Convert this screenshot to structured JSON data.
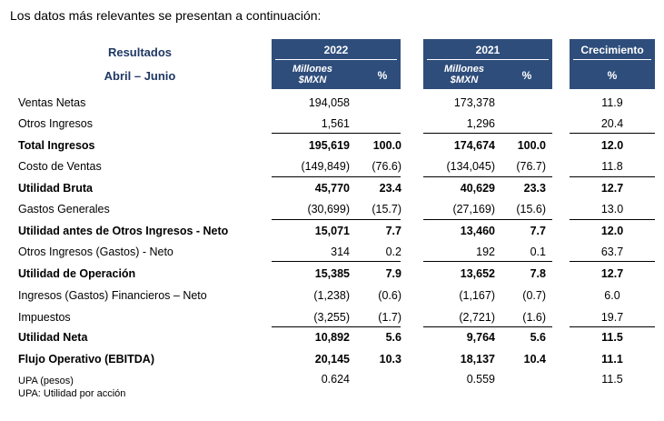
{
  "intro": "Los datos más relevantes se presentan a continuación:",
  "header": {
    "title1": "Resultados",
    "title2": "Abril – Junio",
    "year1": "2022",
    "year2": "2021",
    "growth": "Crecimiento",
    "millones": "Millones",
    "mxn": "$MXN",
    "pct": "%"
  },
  "rows": [
    {
      "label": "Ventas Netas",
      "v2022": "194,058",
      "p2022": "",
      "v2021": "173,378",
      "p2021": "",
      "growth": "11.9",
      "bold": false
    },
    {
      "label": "Otros Ingresos",
      "v2022": "1,561",
      "p2022": "",
      "v2021": "1,296",
      "p2021": "",
      "growth": "20.4",
      "bold": false
    },
    {
      "label": "Total Ingresos",
      "v2022": "195,619",
      "p2022": "100.0",
      "v2021": "174,674",
      "p2021": "100.0",
      "growth": "12.0",
      "bold": true
    },
    {
      "label": "Costo de Ventas",
      "v2022": "(149,849)",
      "p2022": "(76.6)",
      "v2021": "(134,045)",
      "p2021": "(76.7)",
      "growth": "11.8",
      "bold": false
    },
    {
      "label": "Utilidad Bruta",
      "v2022": "45,770",
      "p2022": "23.4",
      "v2021": "40,629",
      "p2021": "23.3",
      "growth": "12.7",
      "bold": true
    },
    {
      "label": "Gastos Generales",
      "v2022": "(30,699)",
      "p2022": "(15.7)",
      "v2021": "(27,169)",
      "p2021": "(15.6)",
      "growth": "13.0",
      "bold": false
    },
    {
      "label": "Utilidad antes de Otros Ingresos - Neto",
      "v2022": "15,071",
      "p2022": "7.7",
      "v2021": "13,460",
      "p2021": "7.7",
      "growth": "12.0",
      "bold": true
    },
    {
      "label": "Otros Ingresos (Gastos) - Neto",
      "v2022": "314",
      "p2022": "0.2",
      "v2021": "192",
      "p2021": "0.1",
      "growth": "63.7",
      "bold": false
    },
    {
      "label": "Utilidad de Operación",
      "v2022": "15,385",
      "p2022": "7.9",
      "v2021": "13,652",
      "p2021": "7.8",
      "growth": "12.7",
      "bold": true
    },
    {
      "label": "Ingresos (Gastos) Financieros – Neto",
      "v2022": "(1,238)",
      "p2022": "(0.6)",
      "v2021": "(1,167)",
      "p2021": "(0.7)",
      "growth": "6.0",
      "bold": false
    },
    {
      "label": "Impuestos",
      "v2022": "(3,255)",
      "p2022": "(1.7)",
      "v2021": "(2,721)",
      "p2021": "(1.6)",
      "growth": "19.7",
      "bold": false
    },
    {
      "label": "Utilidad Neta",
      "v2022": "10,892",
      "p2022": "5.6",
      "v2021": "9,764",
      "p2021": "5.6",
      "growth": "11.5",
      "bold": true
    },
    {
      "label": "Flujo Operativo (EBITDA)",
      "v2022": "20,145",
      "p2022": "10.3",
      "v2021": "18,137",
      "p2021": "10.4",
      "growth": "11.1",
      "bold": true
    }
  ],
  "upa": {
    "label": "UPA (pesos)",
    "v2022": "0.624",
    "v2021": "0.559",
    "growth": "11.5"
  },
  "footnote": "UPA: Utilidad por acción"
}
